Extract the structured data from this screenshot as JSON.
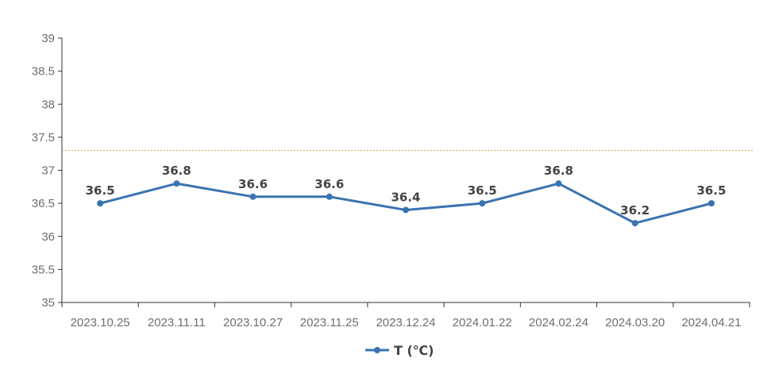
{
  "chart_data": {
    "type": "line",
    "categories": [
      "2023.10.25",
      "2023.11.11",
      "2023.10.27",
      "2023.11.25",
      "2023.12.24",
      "2024.01.22",
      "2024.02.24",
      "2024.03.20",
      "2024.04.21"
    ],
    "series": [
      {
        "name": "T (℃)",
        "values": [
          36.5,
          36.8,
          36.6,
          36.6,
          36.4,
          36.5,
          36.8,
          36.2,
          36.5
        ],
        "color": "#3a73b0"
      }
    ],
    "ylim": [
      35,
      39
    ],
    "yticks": [
      "35",
      "35.5",
      "36",
      "36.5",
      "37",
      "37.5",
      "38",
      "38.5",
      "39"
    ],
    "reference_line": {
      "value": 37.3,
      "color": "#f0a050"
    },
    "legend": "bottom-center",
    "grid": false
  }
}
